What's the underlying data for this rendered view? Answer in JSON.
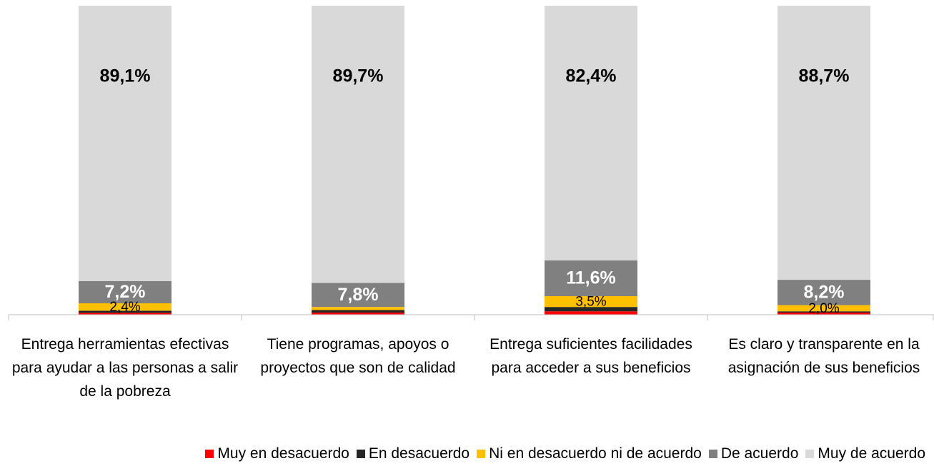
{
  "chart_data": {
    "type": "stacked_bar",
    "categories": [
      "Entrega herramientas efectivas para ayudar a las personas a salir de la pobreza",
      "Tiene programas, apoyos o proyectos que son de calidad",
      "Entrega suficientes facilidades para acceder a sus beneficios",
      "Es claro y transparente en la asignación de sus beneficios"
    ],
    "ylim": [
      0,
      100
    ],
    "legend": "bottom",
    "series": [
      {
        "name": "Muy en desacuerdo",
        "color": "#ff0000",
        "values": [
          0.6,
          0.7,
          1.1,
          0.7
        ]
      },
      {
        "name": "En desacuerdo",
        "color": "#262626",
        "values": [
          0.7,
          0.8,
          1.4,
          0.4
        ]
      },
      {
        "name": "Ni en desacuerdo ni de acuerdo",
        "color": "#ffc000",
        "values": [
          2.4,
          1.0,
          3.5,
          2.0
        ],
        "value_labels": [
          "2,4%",
          null,
          "3,5%",
          "2,0%"
        ]
      },
      {
        "name": "De acuerdo",
        "color": "#808080",
        "values": [
          7.2,
          7.8,
          11.6,
          8.2
        ],
        "value_labels": [
          "7,2%",
          "7,8%",
          "11,6%",
          "8,2%"
        ]
      },
      {
        "name": "Muy de acuerdo",
        "color": "#d9d9d9",
        "values": [
          89.1,
          89.7,
          82.4,
          88.7
        ],
        "value_labels": [
          "89,1%",
          "89,7%",
          "82,4%",
          "88,7%"
        ]
      }
    ]
  }
}
